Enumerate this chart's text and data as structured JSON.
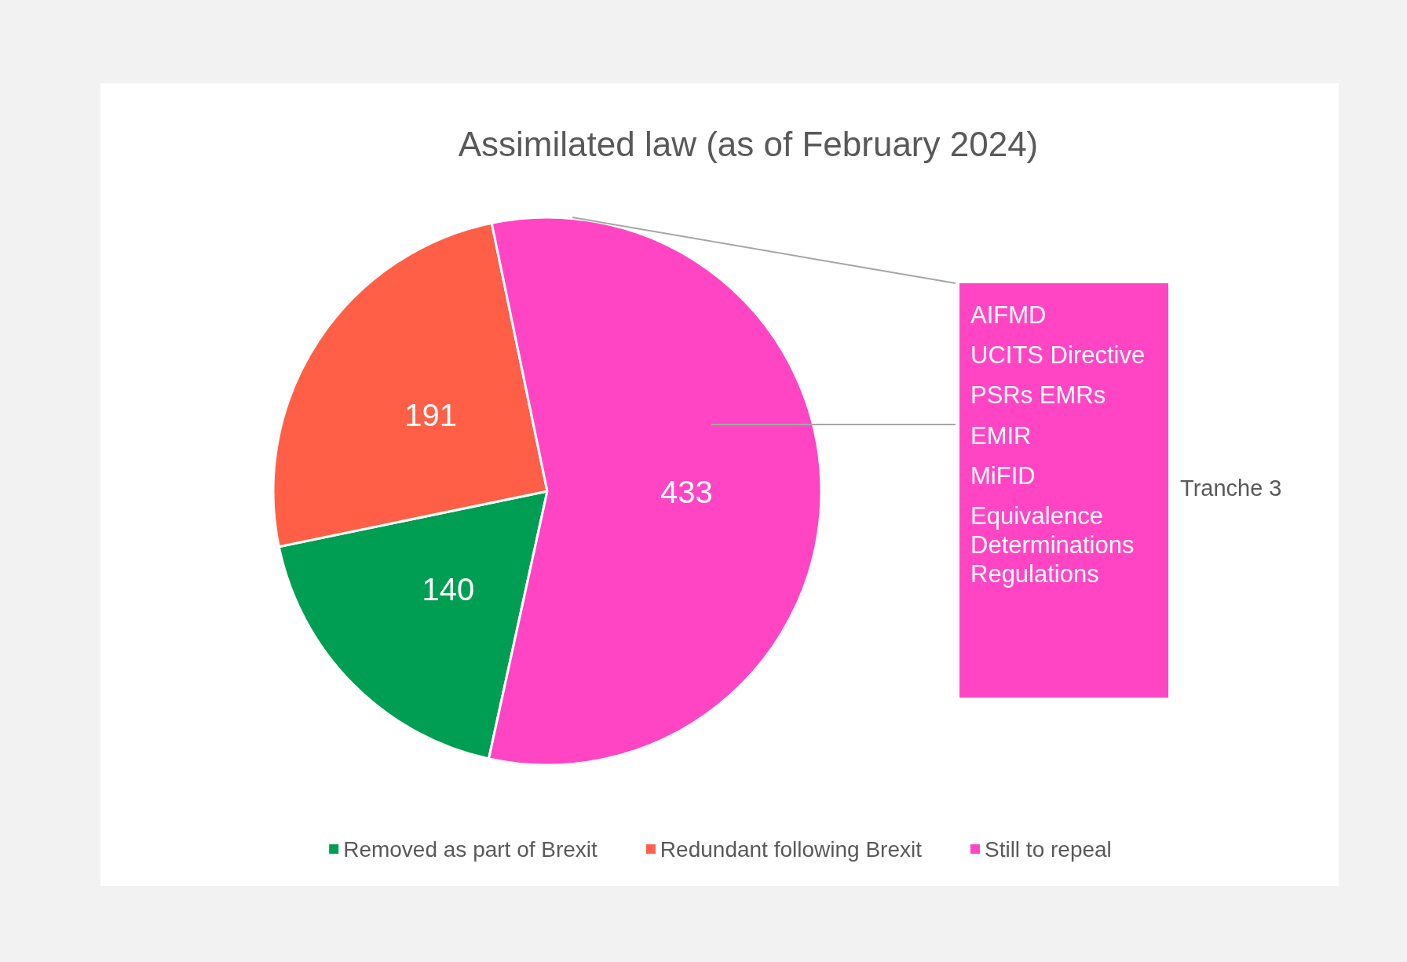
{
  "chart_data": {
    "type": "pie",
    "title": "Assimilated law (as of February 2024)",
    "categories": [
      "Removed as part of Brexit",
      "Redundant following Brexit",
      "Still to repeal"
    ],
    "values": [
      140,
      191,
      433
    ],
    "colors": [
      "#009e52",
      "#ff5f46",
      "#ff45c4"
    ],
    "data_labels": true,
    "legend": "bottom",
    "annotations": [
      "AIFMD",
      "UCITS Directive",
      "PSRs EMRs",
      "EMIR",
      "MiFID",
      "Equivalence Determinations Regulations",
      "Tranche 3"
    ]
  }
}
